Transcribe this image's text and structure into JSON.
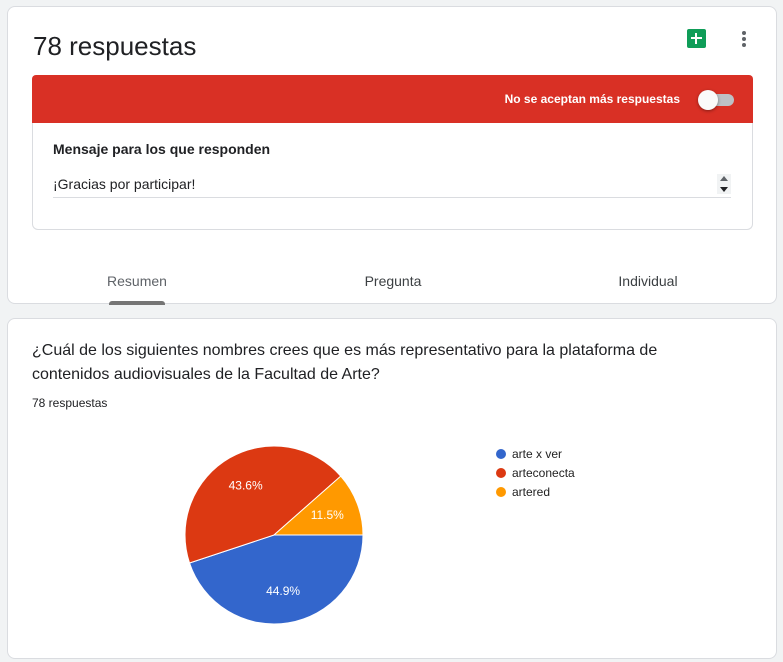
{
  "header": {
    "title": "78 respuestas",
    "sheets_icon": "google-sheets-icon",
    "more_icon": "more-vert-icon"
  },
  "banner": {
    "text": "No se aceptan más respuestas",
    "accepting_responses": false,
    "color": "#d93025"
  },
  "message": {
    "label": "Mensaje para los que responden",
    "value": "¡Gracias por participar!"
  },
  "tabs": [
    {
      "label": "Resumen",
      "active": true
    },
    {
      "label": "Pregunta",
      "active": false
    },
    {
      "label": "Individual",
      "active": false
    }
  ],
  "question": {
    "text": "¿Cuál de los siguientes nombres crees que es más representativo para la plataforma de contenidos audiovisuales de la Facultad de Arte?",
    "count": "78 respuestas"
  },
  "chart_data": {
    "type": "pie",
    "slices": [
      {
        "name": "arte x ver",
        "value": 44.9,
        "label": "44.9%",
        "color": "#3366cc"
      },
      {
        "name": "arteconecta",
        "value": 43.6,
        "label": "43.6%",
        "color": "#dc3912"
      },
      {
        "name": "artered",
        "value": 11.5,
        "label": "11.5%",
        "color": "#ff9900"
      }
    ],
    "legend_position": "right"
  }
}
